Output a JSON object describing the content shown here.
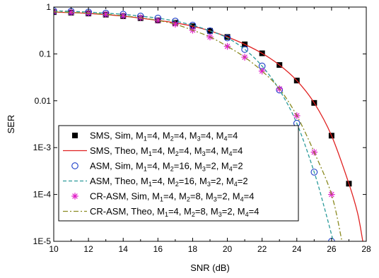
{
  "chart_data": {
    "type": "line",
    "xlabel": "SNR (dB)",
    "ylabel": "SER",
    "xlim": [
      10,
      28
    ],
    "ylim": [
      1e-05,
      1
    ],
    "yscale": "log",
    "x_ticks": [
      10,
      12,
      14,
      16,
      18,
      20,
      22,
      24,
      26,
      28
    ],
    "y_ticks": [
      {
        "value": 1,
        "label": "1"
      },
      {
        "value": 0.1,
        "label": "0.1"
      },
      {
        "value": 0.01,
        "label": "0.01"
      },
      {
        "value": 0.001,
        "label": "1E-3"
      },
      {
        "value": 0.0001,
        "label": "1E-4"
      },
      {
        "value": 1e-05,
        "label": "1E-5"
      }
    ],
    "grid": false,
    "legend_position": "bottom-left",
    "series": [
      {
        "name": "SMS, Sim, M1=4, M2=4, M3=4, M4=4",
        "legend_parts": [
          {
            "t": "SMS, Sim, M"
          },
          {
            "t": "1",
            "sub": true
          },
          {
            "t": "=4, M"
          },
          {
            "t": "2",
            "sub": true
          },
          {
            "t": "=4, M"
          },
          {
            "t": "3",
            "sub": true
          },
          {
            "t": "=4, M"
          },
          {
            "t": "4",
            "sub": true
          },
          {
            "t": "=4"
          }
        ],
        "style": "marker",
        "marker": "square",
        "color": "#000000",
        "x": [
          10,
          11,
          12,
          13,
          14,
          15,
          16,
          17,
          18,
          19,
          20,
          21,
          22,
          23,
          24,
          25,
          26,
          27
        ],
        "y": [
          0.78,
          0.76,
          0.73,
          0.69,
          0.64,
          0.58,
          0.52,
          0.46,
          0.39,
          0.31,
          0.23,
          0.16,
          0.103,
          0.058,
          0.027,
          0.009,
          0.0018,
          0.00017
        ]
      },
      {
        "name": "SMS, Theo, M1=4, M2=4, M3=4, M4=4",
        "legend_parts": [
          {
            "t": "SMS, Theo, M"
          },
          {
            "t": "1",
            "sub": true
          },
          {
            "t": "=4, M"
          },
          {
            "t": "2",
            "sub": true
          },
          {
            "t": "=4, M"
          },
          {
            "t": "3",
            "sub": true
          },
          {
            "t": "=4, M"
          },
          {
            "t": "4",
            "sub": true
          },
          {
            "t": "=4"
          }
        ],
        "style": "solid",
        "color": "#e02020",
        "x": [
          10,
          11,
          12,
          13,
          14,
          15,
          16,
          17,
          18,
          19,
          20,
          21,
          22,
          23,
          24,
          25,
          26,
          27,
          27.5,
          27.8
        ],
        "y": [
          0.78,
          0.76,
          0.73,
          0.69,
          0.64,
          0.58,
          0.52,
          0.46,
          0.39,
          0.31,
          0.23,
          0.16,
          0.103,
          0.058,
          0.027,
          0.009,
          0.0018,
          0.00017,
          4e-05,
          1e-05
        ]
      },
      {
        "name": "ASM, Sim, M1=4, M2=16, M3=2, M4=2",
        "legend_parts": [
          {
            "t": "ASM, Sim, M"
          },
          {
            "t": "1",
            "sub": true
          },
          {
            "t": "=4, M"
          },
          {
            "t": "2",
            "sub": true
          },
          {
            "t": "=16, M"
          },
          {
            "t": "3",
            "sub": true
          },
          {
            "t": "=2, M"
          },
          {
            "t": "4",
            "sub": true
          },
          {
            "t": "=2"
          }
        ],
        "style": "marker",
        "marker": "circle",
        "color": "#1a3cc8",
        "x": [
          10,
          11,
          12,
          13,
          14,
          15,
          16,
          17,
          18,
          19,
          20,
          21,
          22,
          23,
          24,
          25,
          26
        ],
        "y": [
          0.83,
          0.81,
          0.78,
          0.74,
          0.7,
          0.64,
          0.58,
          0.5,
          0.41,
          0.31,
          0.22,
          0.125,
          0.055,
          0.017,
          0.0033,
          0.0003,
          1e-05
        ]
      },
      {
        "name": "ASM, Theo, M1=4, M2=16, M3=2, M4=2",
        "legend_parts": [
          {
            "t": "ASM, Theo, M"
          },
          {
            "t": "1",
            "sub": true
          },
          {
            "t": "=4, M"
          },
          {
            "t": "2",
            "sub": true
          },
          {
            "t": "=16, M"
          },
          {
            "t": "3",
            "sub": true
          },
          {
            "t": "=2, M"
          },
          {
            "t": "4",
            "sub": true
          },
          {
            "t": "=2"
          }
        ],
        "style": "dashed",
        "color": "#2a9a9a",
        "x": [
          10,
          11,
          12,
          13,
          14,
          15,
          16,
          17,
          18,
          19,
          20,
          21,
          22,
          23,
          24,
          25,
          25.6,
          26.1
        ],
        "y": [
          0.83,
          0.81,
          0.78,
          0.74,
          0.7,
          0.64,
          0.58,
          0.5,
          0.41,
          0.31,
          0.22,
          0.125,
          0.055,
          0.017,
          0.0033,
          0.0003,
          5e-05,
          1e-05
        ]
      },
      {
        "name": "CR-ASM, Sim, M1=4, M2=8, M3=2, M4=4",
        "legend_parts": [
          {
            "t": "CR-ASM, Sim, M"
          },
          {
            "t": "1",
            "sub": true
          },
          {
            "t": "=4, M"
          },
          {
            "t": "2",
            "sub": true
          },
          {
            "t": "=8, M"
          },
          {
            "t": "3",
            "sub": true
          },
          {
            "t": "=2, M"
          },
          {
            "t": "4",
            "sub": true
          },
          {
            "t": "=4"
          }
        ],
        "style": "marker",
        "marker": "star",
        "color": "#e020c8",
        "x": [
          10,
          11,
          12,
          13,
          14,
          15,
          16,
          17,
          18,
          19,
          20,
          21,
          22,
          23,
          24,
          25,
          26
        ],
        "y": [
          0.79,
          0.77,
          0.74,
          0.7,
          0.65,
          0.59,
          0.52,
          0.43,
          0.32,
          0.23,
          0.145,
          0.085,
          0.043,
          0.018,
          0.0048,
          0.0008,
          0.0001
        ]
      },
      {
        "name": "CR-ASM, Theo, M1=4, M2=8, M3=2, M4=4",
        "legend_parts": [
          {
            "t": "CR-ASM, Theo, M"
          },
          {
            "t": "1",
            "sub": true
          },
          {
            "t": "=4, M"
          },
          {
            "t": "2",
            "sub": true
          },
          {
            "t": "=8, M"
          },
          {
            "t": "3",
            "sub": true
          },
          {
            "t": "=2, M"
          },
          {
            "t": "4",
            "sub": true
          },
          {
            "t": "=4"
          }
        ],
        "style": "dashdot",
        "color": "#8a8a20",
        "x": [
          10,
          11,
          12,
          13,
          14,
          15,
          16,
          17,
          18,
          19,
          20,
          21,
          22,
          23,
          24,
          25,
          26,
          26.6
        ],
        "y": [
          0.79,
          0.77,
          0.74,
          0.7,
          0.65,
          0.59,
          0.52,
          0.43,
          0.32,
          0.23,
          0.145,
          0.085,
          0.043,
          0.018,
          0.0048,
          0.0008,
          0.0001,
          1e-05
        ]
      }
    ]
  }
}
